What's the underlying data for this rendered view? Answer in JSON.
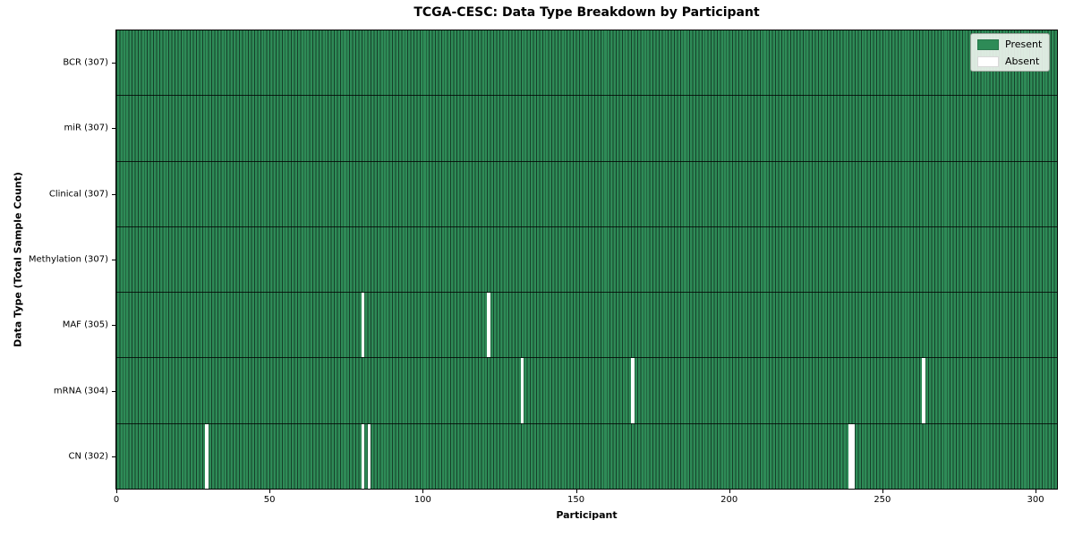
{
  "chart_data": {
    "type": "heatmap",
    "title": "TCGA-CESC: Data Type Breakdown by Participant",
    "xlabel": "Participant",
    "ylabel": "Data Type (Total Sample Count)",
    "n_participants": 307,
    "x_range": [
      0,
      307
    ],
    "x_ticks": [
      0,
      50,
      100,
      150,
      200,
      250,
      300
    ],
    "grid": false,
    "rows": [
      {
        "data_type": "BCR",
        "label": "BCR (307)",
        "total": 307,
        "absent_participants": []
      },
      {
        "data_type": "miR",
        "label": "miR (307)",
        "total": 307,
        "absent_participants": []
      },
      {
        "data_type": "Clinical",
        "label": "Clinical (307)",
        "total": 307,
        "absent_participants": []
      },
      {
        "data_type": "Methylation",
        "label": "Methylation (307)",
        "total": 307,
        "absent_participants": []
      },
      {
        "data_type": "MAF",
        "label": "MAF (305)",
        "total": 305,
        "absent_participants": [
          80,
          121
        ]
      },
      {
        "data_type": "mRNA",
        "label": "mRNA (304)",
        "total": 304,
        "absent_participants": [
          132,
          168,
          263
        ]
      },
      {
        "data_type": "CN",
        "label": "CN (302)",
        "total": 302,
        "absent_participants": [
          29,
          80,
          82,
          239,
          240
        ]
      }
    ],
    "legend": {
      "position": "upper right",
      "entries": [
        {
          "label": "Present",
          "color": "#2e8b57"
        },
        {
          "label": "Absent",
          "color": "#ffffff"
        }
      ]
    },
    "colors": {
      "present": "#2e8b57",
      "absent": "#ffffff",
      "cell_edge": "#16402a",
      "row_edge": "#000000"
    }
  }
}
